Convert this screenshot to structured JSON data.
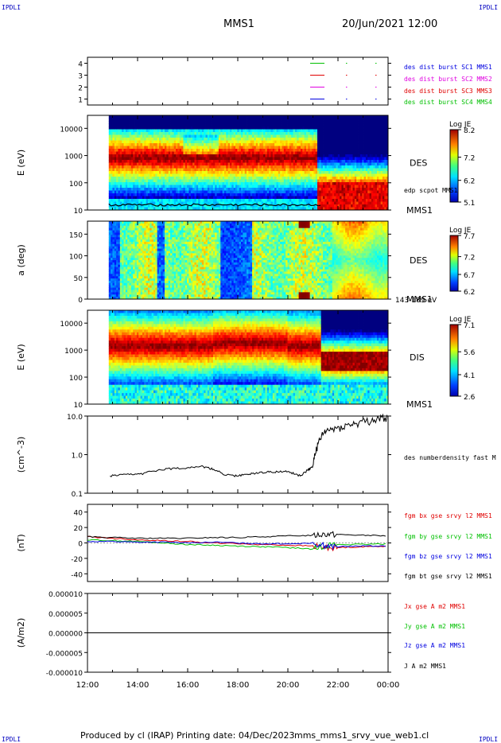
{
  "header": {
    "corner_left_top": "IPDLI",
    "corner_right_top": "IPDLI",
    "corner_left_bottom": "IPDLI",
    "corner_right_bottom": "IPDLI",
    "spacecraft": "MMS1",
    "datetime": "20/Jun/2021 12:00"
  },
  "footer": {
    "produced_by": "Produced by cl (IRAP)",
    "printing_date": "Printing date: 04/Dec/2023",
    "file": "mms_mms1_srvy_vue_web1.cl"
  },
  "time_axis": {
    "ticks": [
      "12:00",
      "14:00",
      "16:00",
      "18:00",
      "20:00",
      "22:00",
      "00:00"
    ],
    "range_hours": [
      0,
      12
    ]
  },
  "colors": {
    "red": "#e00000",
    "green": "#00c000",
    "blue": "#0000e0",
    "magenta": "#e000e0",
    "black": "#000000"
  },
  "chart_data": [
    {
      "type": "line",
      "panel": "burst",
      "ylim": [
        0.5,
        4.5
      ],
      "yticks": [
        "1",
        "2",
        "3",
        "4"
      ],
      "legend": [
        {
          "label": "des dist burst SC1 MMS1",
          "color": "#0000e0",
          "y": 1
        },
        {
          "label": "des dist burst SC2 MMS2",
          "color": "#e000e0",
          "y": 2
        },
        {
          "label": "des dist burst SC3 MMS3",
          "color": "#e00000",
          "y": 3
        },
        {
          "label": "des dist burst SC4 MMS4",
          "color": "#00c000",
          "y": 4
        }
      ]
    },
    {
      "type": "heatmap",
      "panel": "des_energy",
      "ylabel": "E (eV)",
      "yscale": "log",
      "ylim": [
        10,
        30000
      ],
      "yticks": [
        "10",
        "100",
        "1000",
        "10000"
      ],
      "label": "DES",
      "sublabel": "MMS1",
      "overlay": "edp scpot MMS1",
      "colorbar": {
        "title": "Log JE",
        "max": "8.2",
        "mid": "7.2",
        "mid2": "6.2",
        "min": "5.1"
      }
    },
    {
      "type": "heatmap",
      "panel": "des_pitch",
      "ylabel": "a (deg)",
      "ylim": [
        0,
        180
      ],
      "yticks": [
        "0",
        "50",
        "100",
        "150"
      ],
      "label": "DES",
      "sublabel": "MMS1",
      "energy_range": "143-189 eV",
      "colorbar": {
        "title": "Log JE",
        "max": "7.7",
        "mid": "7.2",
        "mid2": "6.7",
        "min": "6.2"
      }
    },
    {
      "type": "heatmap",
      "panel": "dis_energy",
      "ylabel": "E (eV)",
      "yscale": "log",
      "ylim": [
        10,
        30000
      ],
      "yticks": [
        "10",
        "100",
        "1000",
        "10000"
      ],
      "label": "DIS",
      "sublabel": "MMS1",
      "colorbar": {
        "title": "Log JE",
        "max": "7.1",
        "mid": "5.6",
        "mid2": "4.1",
        "min": "2.6"
      }
    },
    {
      "type": "line",
      "panel": "density",
      "ylabel": "(cm^-3)",
      "yscale": "log",
      "ylim": [
        0.1,
        10
      ],
      "yticks": [
        "0.1",
        "1.0",
        "10.0"
      ],
      "legend": [
        {
          "label": "des numberdensity fast M",
          "color": "#000000"
        }
      ],
      "x": [
        0.9,
        1.5,
        2.2,
        3.0,
        3.8,
        4.5,
        5.0,
        5.5,
        6.0,
        6.5,
        7.0,
        7.5,
        8.0,
        8.5,
        8.8,
        9.0,
        9.2,
        9.5,
        10.0,
        10.5,
        11.0,
        11.5,
        12.0
      ],
      "values": [
        0.28,
        0.3,
        0.32,
        0.42,
        0.45,
        0.5,
        0.42,
        0.3,
        0.28,
        0.32,
        0.35,
        0.36,
        0.36,
        0.28,
        0.4,
        0.5,
        1.8,
        4.0,
        5.0,
        6.0,
        7.0,
        8.0,
        9.5
      ]
    },
    {
      "type": "line",
      "panel": "fgm",
      "ylabel": "(nT)",
      "ylim": [
        -50,
        50
      ],
      "yticks": [
        "-40",
        "-20",
        "0",
        "20",
        "40"
      ],
      "x": [
        0,
        1,
        2,
        3,
        4,
        5,
        6,
        7,
        8,
        9,
        9.5,
        10,
        11,
        12
      ],
      "series": [
        {
          "name": "fgm bx gse srvy l2 MMS1",
          "color": "#e00000",
          "values": [
            8,
            6,
            4,
            3,
            2,
            0,
            -1,
            -2,
            -3,
            -4,
            -6,
            -6,
            -5,
            -4
          ]
        },
        {
          "name": "fgm by gse srvy l2 MMS1",
          "color": "#00c000",
          "values": [
            4,
            3,
            2,
            0,
            -2,
            -3,
            -4,
            -5,
            -6,
            -8,
            -3,
            -2,
            -2,
            -1
          ]
        },
        {
          "name": "fgm bz gse srvy l2 MMS1",
          "color": "#0000e0",
          "values": [
            2,
            2,
            1,
            1,
            0,
            1,
            0,
            -1,
            -1,
            0,
            -4,
            -5,
            -4,
            -4
          ]
        },
        {
          "name": "fgm bt gse srvy l2 MMS1",
          "color": "#000000",
          "values": [
            8,
            7,
            6,
            6,
            6,
            7,
            7,
            8,
            9,
            10,
            12,
            11,
            10,
            9
          ]
        }
      ]
    },
    {
      "type": "line",
      "panel": "current",
      "ylabel": "(A/m2)",
      "ylim": [
        -1e-05,
        1e-05
      ],
      "yticks": [
        "-0.000010",
        "-0.000005",
        "0.000000",
        "0.000005",
        "0.000010"
      ],
      "x": [
        0,
        12
      ],
      "series": [
        {
          "name": "Jx gse A m2 MMS1",
          "color": "#e00000",
          "values": [
            0,
            0
          ]
        },
        {
          "name": "Jy gse A m2 MMS1",
          "color": "#00c000",
          "values": [
            0,
            0
          ]
        },
        {
          "name": "Jz gse A m2 MMS1",
          "color": "#0000e0",
          "values": [
            0,
            0
          ]
        },
        {
          "name": "J A m2 MMS1",
          "color": "#000000",
          "values": [
            0,
            0
          ]
        }
      ]
    }
  ]
}
